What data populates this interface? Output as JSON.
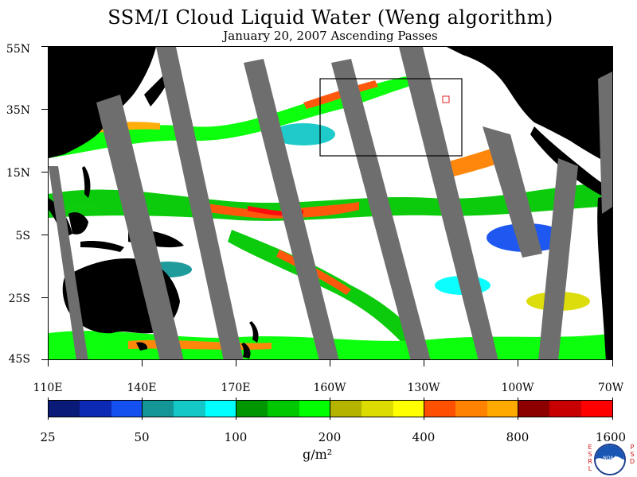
{
  "title": "SSM/I Cloud Liquid Water (Weng algorithm)",
  "subtitle": "January 20, 2007  Ascending Passes",
  "map": {
    "lat_labels": [
      "55N",
      "35N",
      "15N",
      "5S",
      "25S",
      "45S"
    ],
    "lon_labels": [
      "110E",
      "140E",
      "170E",
      "160W",
      "130W",
      "100W",
      "70W"
    ],
    "colors": {
      "ocean": "#ffffff",
      "land": "#000000",
      "no_data_swath": "#6e6e6e",
      "box_outline": "#000000",
      "small_box": "#e02020"
    }
  },
  "colorbar": {
    "labels": [
      "25",
      "50",
      "100",
      "200",
      "400",
      "800",
      "1600"
    ],
    "colors": [
      "#0a1a78",
      "#0d2ab4",
      "#1450f0",
      "#149696",
      "#14c8c8",
      "#00ffff",
      "#009600",
      "#00c800",
      "#00ff00",
      "#b4b400",
      "#dcdc00",
      "#ffff00",
      "#ff5000",
      "#ff8200",
      "#ffaa00",
      "#8c0000",
      "#c80000",
      "#ff0000"
    ],
    "units": "g/m²"
  },
  "logo": {
    "left_letters": [
      "E",
      "S",
      "R",
      "L"
    ],
    "right_letters": [
      "P",
      "S",
      "D"
    ],
    "badge_text": "NOAA"
  }
}
